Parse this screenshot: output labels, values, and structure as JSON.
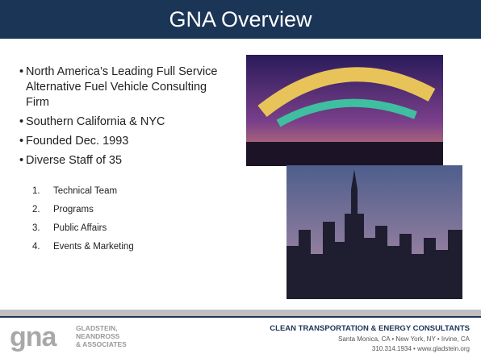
{
  "header": {
    "title": "GNA Overview"
  },
  "bullets": [
    "North America’s Leading Full Service Alternative Fuel Vehicle Consulting Firm",
    "Southern California & NYC",
    "Founded Dec. 1993",
    "Diverse Staff of 35"
  ],
  "sub_items": [
    {
      "number": "1.",
      "text": "Technical Team"
    },
    {
      "number": "2.",
      "text": "Programs"
    },
    {
      "number": "3.",
      "text": "Public Affairs"
    },
    {
      "number": "4.",
      "text": "Events & Marketing"
    }
  ],
  "footer": {
    "logo": "gna",
    "company": [
      "GLADSTEIN,",
      "NEANDROSS",
      "& ASSOCIATES"
    ],
    "tagline": "CLEAN TRANSPORTATION & ENERGY CONSULTANTS",
    "locations": "Santa Monica, CA  •  New York, NY  •  Irvine, CA",
    "contact": "310.314.1934  •  www.gladstein.org"
  }
}
